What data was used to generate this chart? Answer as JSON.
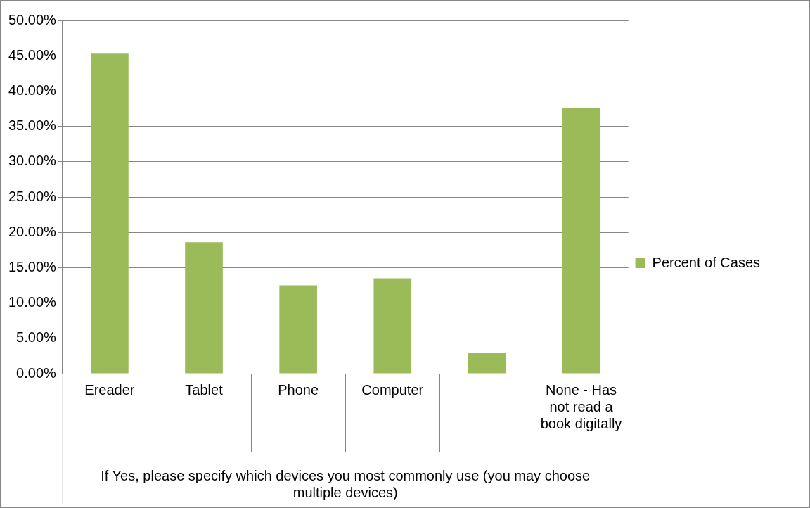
{
  "chart_data": {
    "type": "bar",
    "xlabel": "If Yes, please specify which devices you most commonly use (you may choose multiple devices)",
    "categories": [
      "Ereader",
      "Tablet",
      "Phone",
      "Computer",
      null,
      "None - Has not read a book digitally"
    ],
    "series": [
      {
        "name": "Percent of Cases",
        "color": "#9bbb59",
        "values": [
          45.3,
          18.6,
          12.5,
          13.5,
          2.9,
          37.6
        ]
      }
    ],
    "ylim": [
      0,
      50
    ],
    "yticks": [
      {
        "value": 0,
        "label": "0.00%"
      },
      {
        "value": 5,
        "label": "5.00%"
      },
      {
        "value": 10,
        "label": "10.00%"
      },
      {
        "value": 15,
        "label": "15.00%"
      },
      {
        "value": 20,
        "label": "20.00%"
      },
      {
        "value": 25,
        "label": "25.00%"
      },
      {
        "value": 30,
        "label": "30.00%"
      },
      {
        "value": 35,
        "label": "35.00%"
      },
      {
        "value": 40,
        "label": "40.00%"
      },
      {
        "value": 45,
        "label": "45.00%"
      },
      {
        "value": 50,
        "label": "50.00%"
      }
    ],
    "grid": "y",
    "legend": "right"
  }
}
